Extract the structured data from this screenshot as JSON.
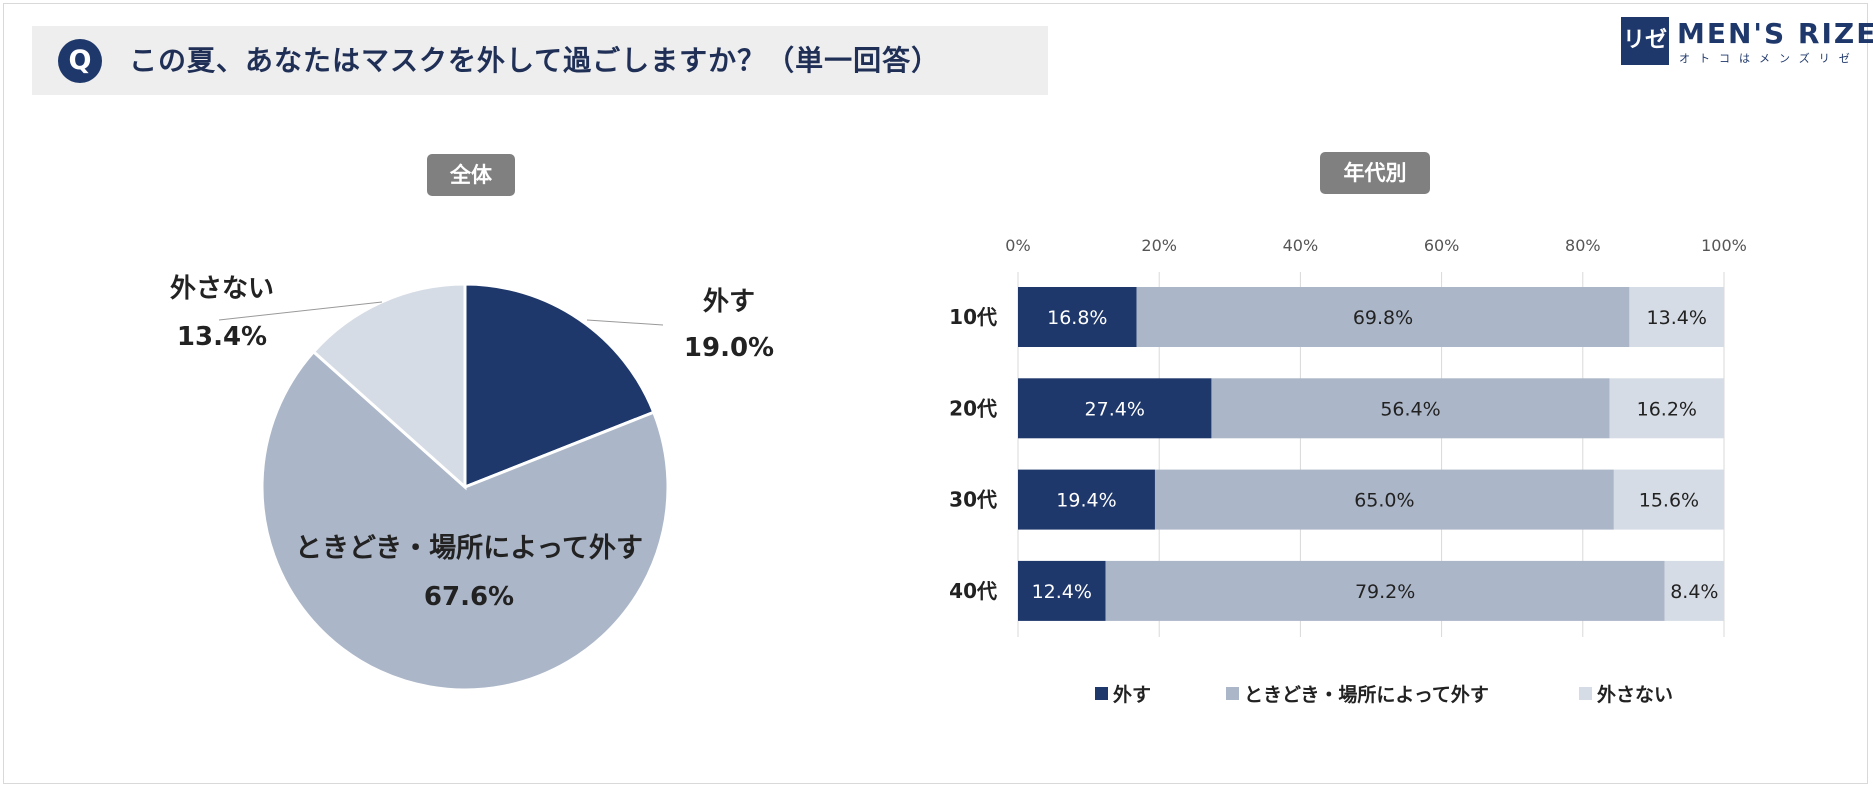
{
  "question": {
    "badge": "Q",
    "text": "この夏、あなたはマスクを外して過ごしますか？（単一回答）"
  },
  "brand": {
    "mark": "リゼ",
    "name": "MEN'S RIZE",
    "tagline": "オトコはメンズリゼ"
  },
  "colors": {
    "dark": "#1f386b",
    "mid": "#abb6c8",
    "light": "#d6dce5"
  },
  "chart_data": [
    {
      "type": "pie",
      "title": "全体",
      "slices": [
        {
          "label": "外す",
          "value": 19.0,
          "display": "19.0%",
          "color": "#1f386b"
        },
        {
          "label": "ときどき・場所によって外す",
          "value": 67.6,
          "display": "67.6%",
          "color": "#abb6c8"
        },
        {
          "label": "外さない",
          "value": 13.4,
          "display": "13.4%",
          "color": "#d6dce5"
        }
      ]
    },
    {
      "type": "bar",
      "orientation": "horizontal",
      "stacked": true,
      "title": "年代別",
      "categories": [
        "10代",
        "20代",
        "30代",
        "40代"
      ],
      "xlim": [
        0,
        100
      ],
      "xticks": [
        "0%",
        "20%",
        "40%",
        "60%",
        "80%",
        "100%"
      ],
      "grid": true,
      "legend_position": "bottom",
      "series": [
        {
          "name": "外す",
          "values": [
            16.8,
            27.4,
            19.4,
            12.4
          ],
          "labels": [
            "16.8%",
            "27.4%",
            "19.4%",
            "12.4%"
          ],
          "color": "#1f386b"
        },
        {
          "name": "ときどき・場所によって外す",
          "values": [
            69.8,
            56.4,
            65.0,
            79.2
          ],
          "labels": [
            "69.8%",
            "56.4%",
            "65.0%",
            "79.2%"
          ],
          "color": "#abb6c8"
        },
        {
          "name": "外さない",
          "values": [
            13.4,
            16.2,
            15.6,
            8.4
          ],
          "labels": [
            "13.4%",
            "16.2%",
            "15.6%",
            "8.4%"
          ],
          "color": "#d6dce5"
        }
      ]
    }
  ]
}
